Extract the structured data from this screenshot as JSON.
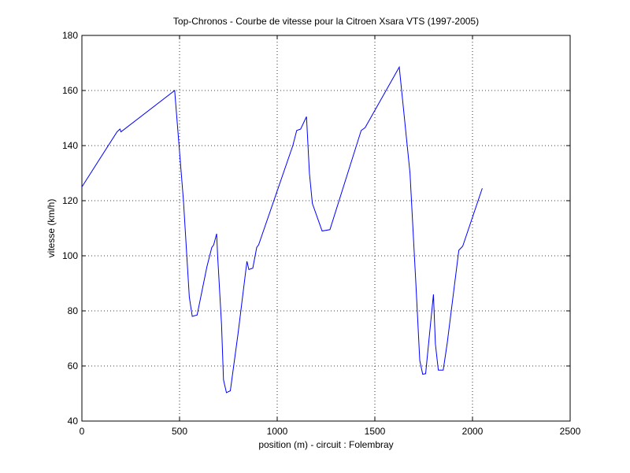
{
  "chart_data": {
    "type": "line",
    "title": "Top-Chronos - Courbe de vitesse pour la Citroen Xsara VTS (1997-2005)",
    "x_label": "position (m) - circuit : Folembray",
    "y_label": "vitesse (km/h)",
    "x": [
      0,
      180,
      195,
      200,
      475,
      520,
      550,
      565,
      590,
      640,
      665,
      675,
      690,
      695,
      715,
      725,
      740,
      760,
      800,
      845,
      855,
      875,
      895,
      905,
      1080,
      1100,
      1120,
      1150,
      1165,
      1180,
      1230,
      1270,
      1430,
      1450,
      1625,
      1680,
      1710,
      1730,
      1745,
      1760,
      1800,
      1810,
      1825,
      1850,
      1870,
      1930,
      1950,
      2050
    ],
    "values": [
      125,
      145,
      146,
      145,
      160,
      120,
      85,
      78,
      78.5,
      96,
      103,
      104,
      108,
      100,
      75,
      55,
      50.3,
      51,
      72,
      98,
      95,
      95.5,
      103,
      104,
      140,
      145.5,
      146,
      150.5,
      130,
      119,
      109,
      109.5,
      145.5,
      146.5,
      168.5,
      130,
      90,
      62,
      57,
      57.2,
      86,
      68,
      58.5,
      58.5,
      68,
      102,
      103.5,
      124.5
    ],
    "color": "#0000ff",
    "xlim": [
      0,
      2500
    ],
    "xticks": [
      0,
      500,
      1000,
      1500,
      2000,
      2500
    ],
    "ylim": [
      40,
      180
    ],
    "yticks": [
      40,
      60,
      80,
      100,
      120,
      140,
      160,
      180
    ],
    "grid": true
  }
}
